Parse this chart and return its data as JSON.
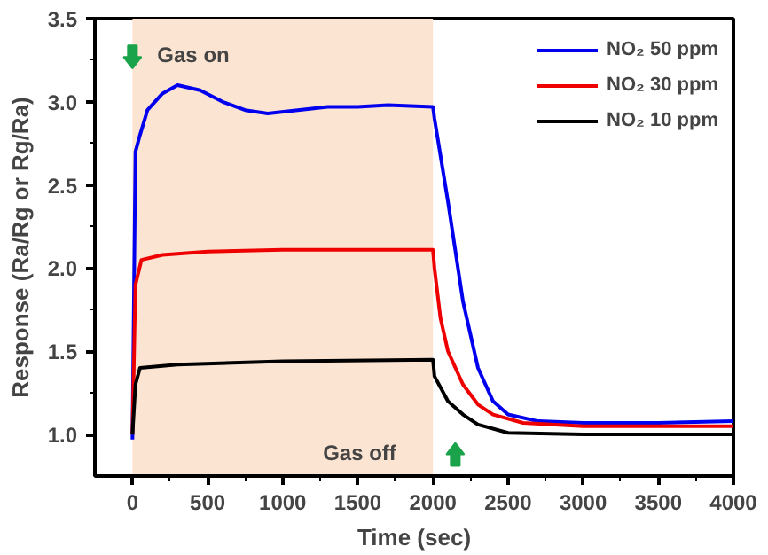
{
  "chart_data": {
    "type": "line",
    "xlabel": "Time (sec)",
    "ylabel": "Response (Ra/Rg or Rg/Ra)",
    "xlim": [
      -250,
      4000
    ],
    "ylim": [
      0.75,
      3.5
    ],
    "xticks": [
      0,
      500,
      1000,
      1500,
      2000,
      2500,
      3000,
      3500,
      4000
    ],
    "yticks": [
      {
        "value": 1,
        "label": "1.0"
      },
      {
        "value": 1.5,
        "label": "1.5"
      },
      {
        "value": 2,
        "label": "2.0"
      },
      {
        "value": 2.5,
        "label": "2.5"
      },
      {
        "value": 3,
        "label": "3.0"
      },
      {
        "value": 3.5,
        "label": "3.5"
      }
    ],
    "grid": false,
    "legend": "top right",
    "line_style": "solid",
    "marker": "none",
    "bands": [
      {
        "axis": "x",
        "from": 0,
        "to": 2000,
        "color": "#fce4d2"
      }
    ],
    "annotations": [
      {
        "text": "Gas on",
        "x": 0,
        "y": 3.27
      },
      {
        "text": "Gas off",
        "x": 2000,
        "y": 0.88
      }
    ],
    "series": [
      {
        "name": "NO₂ 50 ppm",
        "color": "#0000ee",
        "x": [
          0,
          20,
          50,
          100,
          200,
          300,
          450,
          600,
          750,
          900,
          1100,
          1300,
          1500,
          1700,
          2000,
          2010,
          2100,
          2200,
          2300,
          2400,
          2500,
          2700,
          3000,
          3500,
          4000
        ],
        "values": [
          0.97,
          2.7,
          2.8,
          2.95,
          3.05,
          3.1,
          3.07,
          3.0,
          2.95,
          2.93,
          2.95,
          2.97,
          2.97,
          2.98,
          2.97,
          2.9,
          2.4,
          1.8,
          1.4,
          1.2,
          1.12,
          1.08,
          1.07,
          1.07,
          1.08
        ]
      },
      {
        "name": "NO₂ 30 ppm",
        "color": "#ee0000",
        "x": [
          0,
          20,
          60,
          200,
          500,
          1000,
          1500,
          2000,
          2010,
          2050,
          2100,
          2200,
          2300,
          2400,
          2600,
          3000,
          4000
        ],
        "values": [
          1.0,
          1.9,
          2.05,
          2.08,
          2.1,
          2.11,
          2.11,
          2.11,
          2.0,
          1.7,
          1.5,
          1.3,
          1.18,
          1.12,
          1.07,
          1.05,
          1.05
        ]
      },
      {
        "name": "NO₂ 10 ppm",
        "color": "#000000",
        "x": [
          0,
          20,
          50,
          300,
          1000,
          2000,
          2010,
          2100,
          2200,
          2300,
          2500,
          3000,
          4000
        ],
        "values": [
          1.0,
          1.3,
          1.4,
          1.42,
          1.44,
          1.45,
          1.35,
          1.2,
          1.12,
          1.06,
          1.01,
          1.0,
          1.0
        ]
      }
    ]
  }
}
